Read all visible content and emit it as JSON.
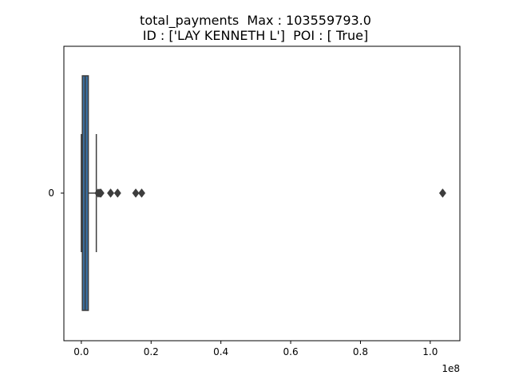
{
  "chart_data": {
    "type": "box",
    "orientation": "horizontal",
    "title_lines": [
      "total_payments  Max : 103559793.0",
      "ID : ['LAY KENNETH L']  POI : [ True]"
    ],
    "xlabel": "",
    "ylabel": "",
    "x_offset_label": "1e8",
    "categories": [
      "0"
    ],
    "xlim": [
      -0.05,
      1.085
    ],
    "x_ticks": [
      0.0,
      0.2,
      0.4,
      0.6,
      0.8,
      1.0
    ],
    "x_tick_labels": [
      "0.0",
      "0.2",
      "0.4",
      "0.6",
      "0.8",
      "1.0"
    ],
    "box": {
      "color": "#3a6fa0",
      "whisker_low": 0.0,
      "q1": 0.003,
      "median": 0.011,
      "q3": 0.02,
      "whisker_high": 0.043
    },
    "outliers": [
      0.048,
      0.053,
      0.056,
      0.084,
      0.104,
      0.156,
      0.173,
      1.0356
    ],
    "grid": false
  }
}
